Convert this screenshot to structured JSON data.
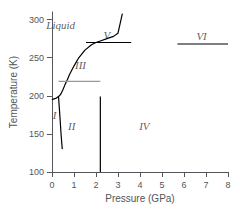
{
  "chart_data": {
    "type": "line",
    "title": "",
    "xlabel": "Pressure (GPa)",
    "ylabel": "Temperature (K)",
    "xlim": [
      0,
      8
    ],
    "ylim": [
      100,
      310
    ],
    "xticks": [
      0,
      1,
      2,
      3,
      4,
      5,
      6,
      7,
      8
    ],
    "yticks": [
      100,
      150,
      200,
      250,
      300
    ],
    "grid": false,
    "series": [
      {
        "color": "#000000",
        "x": [
          0.0,
          0.1,
          0.2,
          0.3,
          0.4,
          0.5,
          0.6,
          0.7,
          0.8,
          1.0,
          1.2,
          1.5,
          1.8,
          2.0,
          2.2,
          2.5,
          2.8,
          3.0,
          3.2
        ],
        "values": [
          195,
          196,
          197,
          199,
          202,
          208,
          215,
          221,
          228,
          239,
          249,
          260,
          267,
          270,
          272,
          275,
          278,
          282,
          308
        ]
      },
      {
        "color": "#000000",
        "x": [
          0.3,
          0.37,
          0.42,
          0.47
        ],
        "values": [
          199,
          170,
          148,
          130
        ]
      },
      {
        "color": "#000000",
        "x": [
          2.2,
          2.2
        ],
        "values": [
          100,
          199
        ]
      },
      {
        "color": "#999999",
        "x": [
          0.3,
          2.2
        ],
        "values": [
          219,
          219
        ]
      },
      {
        "color": "#000000",
        "x": [
          1.55,
          3.6
        ],
        "values": [
          270,
          270
        ]
      },
      {
        "color": "#000000",
        "x": [
          5.7,
          8.0
        ],
        "values": [
          268,
          268
        ]
      }
    ],
    "annotations": [
      {
        "text": "I",
        "x": 0.12,
        "y": 175
      },
      {
        "text": "II",
        "x": 0.9,
        "y": 160
      },
      {
        "text": "III",
        "x": 1.3,
        "y": 240
      },
      {
        "text": "IV",
        "x": 4.2,
        "y": 160
      },
      {
        "text": "V",
        "x": 2.5,
        "y": 280
      },
      {
        "text": "VI",
        "x": 6.8,
        "y": 279
      },
      {
        "text": "Liquid",
        "x": 0.4,
        "y": 293
      }
    ]
  }
}
